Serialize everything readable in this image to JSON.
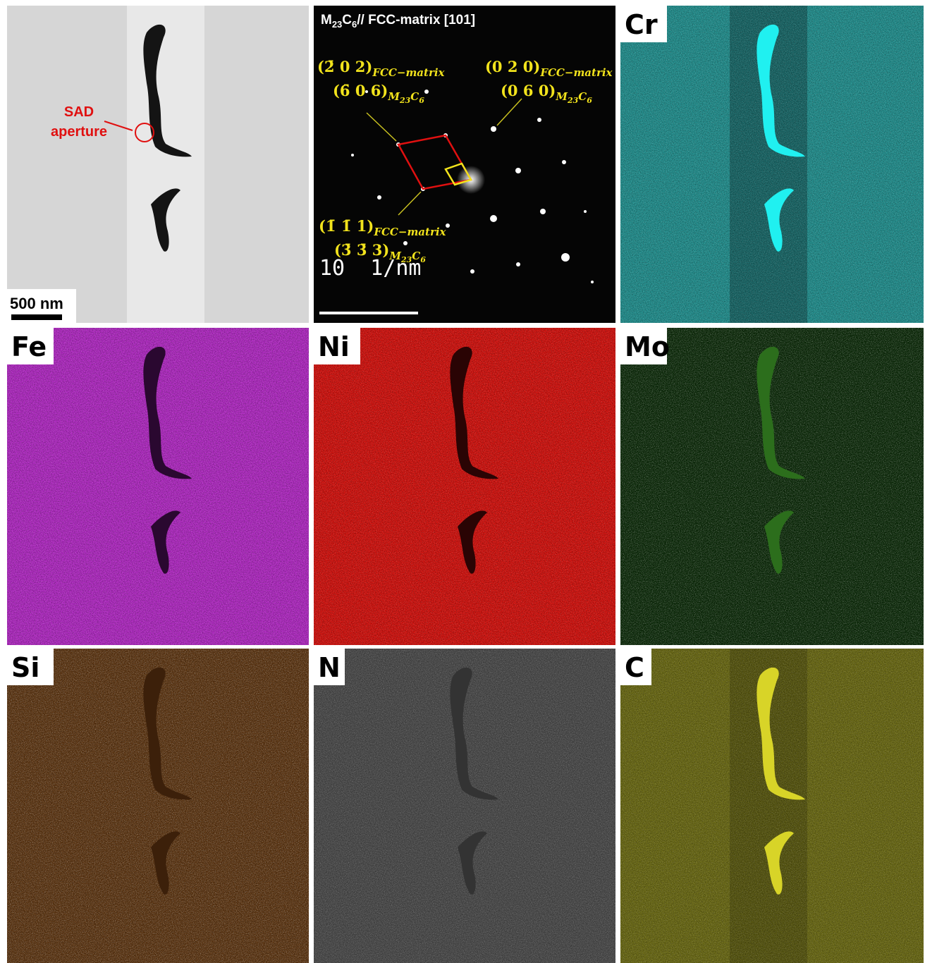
{
  "bf_image": {
    "annotation": [
      "SAD",
      "aperture"
    ],
    "scale_bar": "500 nm"
  },
  "diffraction": {
    "title": [
      "M",
      "23",
      "C",
      "6",
      "// FCC-matrix [101]"
    ],
    "spots": [
      {
        "fcc": "(2̄ 0 2)",
        "fcc_sub": "FCC−matrix",
        "carbide": "(6̄ 0 6)",
        "carbide_sub": [
          "M",
          "23",
          "C",
          "6"
        ]
      },
      {
        "fcc": "(0 2 0)",
        "fcc_sub": "FCC−matrix",
        "carbide": "(0 6 0)",
        "carbide_sub": [
          "M",
          "23",
          "C",
          "6"
        ]
      },
      {
        "fcc": "(1̄ 1̄ 1)",
        "fcc_sub": "FCC−matrix",
        "carbide": "(3̄ 3̄ 3)",
        "carbide_sub": [
          "M",
          "23",
          "C",
          "6"
        ]
      }
    ],
    "scale_bar": "10  1/nm"
  },
  "maps": [
    "Cr",
    "Fe",
    "Ni",
    "Mo",
    "Si",
    "N",
    "C"
  ]
}
